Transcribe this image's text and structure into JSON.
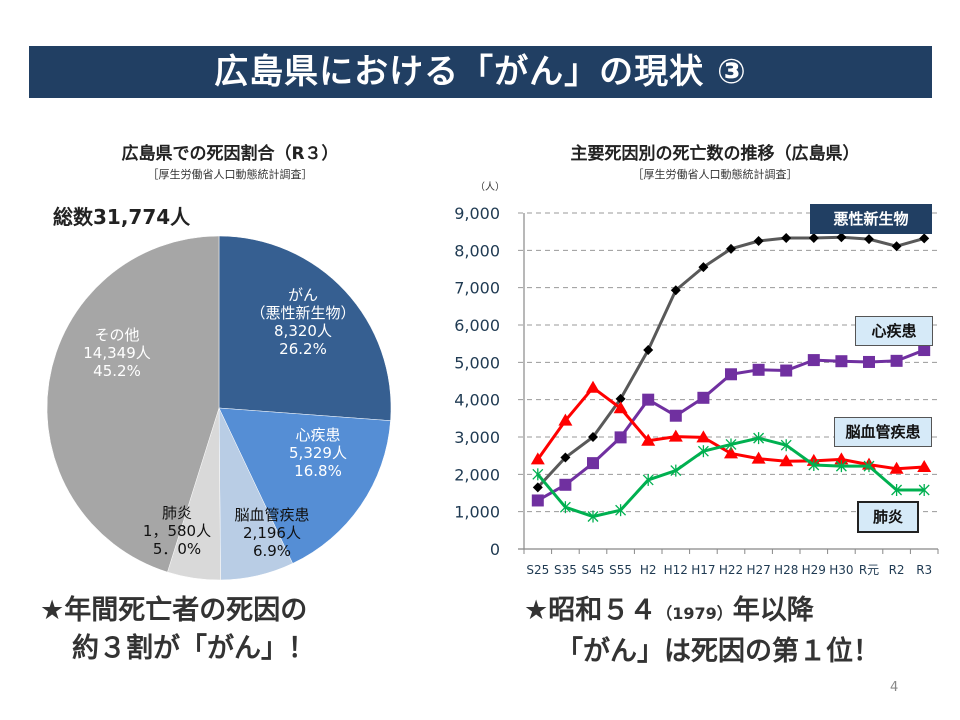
{
  "header": {
    "title": "広島県における「がん」の現状 ③"
  },
  "pie_section": {
    "title": "広島県での死因割合（R３）",
    "source": "［厚生労働省人口動態統計調査］",
    "total": "総数31,774人"
  },
  "line_section": {
    "title": "主要死因別の死亡数の推移（広島県）",
    "source": "［厚生労働省人口動態統計調査］"
  },
  "notes": {
    "left_line1": "★年間死亡者の死因の",
    "left_line2": "約３割が「がん」！",
    "right_line1_a": "★昭和５４",
    "right_line1_b": "（1979）",
    "right_line1_c": "年以降",
    "right_line2": "「がん」は死因の第１位！"
  },
  "page_number": "4",
  "chart_data": [
    {
      "type": "pie",
      "title": "広島県での死因割合（R３）",
      "total_label": "総数31,774人",
      "start": "12 o'clock, clockwise",
      "slices": [
        {
          "name": "がん",
          "sub": "（悪性新生物）",
          "count": "8,320人",
          "percent": "26.2%",
          "value": 26.2,
          "color": "#365f91",
          "text_color": "#ffffff"
        },
        {
          "name": "心疾患",
          "count": "5,329人",
          "percent": "16.8%",
          "value": 16.8,
          "color": "#558ed5",
          "text_color": "#ffffff"
        },
        {
          "name": "脳血管疾患",
          "count": "2,196人",
          "percent": "6.9%",
          "value": 6.9,
          "color": "#b9cde5",
          "text_color": "#111111"
        },
        {
          "name": "肺炎",
          "count": "1，580人",
          "percent": "5．0%",
          "value": 5.0,
          "color": "#d9d9d9",
          "text_color": "#111111"
        },
        {
          "name": "その他",
          "count": "14,349人",
          "percent": "45.2%",
          "value": 45.2,
          "color": "#a6a6a6",
          "text_color": "#ffffff"
        }
      ]
    },
    {
      "type": "line",
      "title": "主要死因別の死亡数の推移（広島県）",
      "ylabel": "（人）",
      "ylim": [
        0,
        9000
      ],
      "yticks": [
        0,
        1000,
        2000,
        3000,
        4000,
        5000,
        6000,
        7000,
        8000,
        9000
      ],
      "ytick_labels": [
        "0",
        "1,000",
        "2,000",
        "3,000",
        "4,000",
        "5,000",
        "6,000",
        "7,000",
        "8,000",
        "9,000"
      ],
      "grid": "horizontal dashed",
      "categories": [
        "S25",
        "S35",
        "S45",
        "S55",
        "H2",
        "H12",
        "H17",
        "H22",
        "H27",
        "H28",
        "H29",
        "H30",
        "R元",
        "R2",
        "R3"
      ],
      "series": [
        {
          "name": "悪性新生物",
          "color": "#595959",
          "marker": "diamond",
          "marker_color": "#000000",
          "values": [
            1650,
            2450,
            3000,
            4020,
            5330,
            6930,
            7550,
            8040,
            8250,
            8330,
            8330,
            8350,
            8300,
            8110,
            8320
          ]
        },
        {
          "name": "心疾患",
          "color": "#7030a0",
          "marker": "square",
          "marker_color": "#7030a0",
          "values": [
            1300,
            1720,
            2300,
            2990,
            4000,
            3570,
            4050,
            4680,
            4800,
            4780,
            5060,
            5030,
            5010,
            5040,
            5329
          ]
        },
        {
          "name": "脳血管疾患",
          "color": "#ff0000",
          "marker": "triangle",
          "marker_color": "#ff0000",
          "values": [
            2400,
            3440,
            4320,
            3770,
            2900,
            3010,
            2990,
            2560,
            2420,
            2350,
            2360,
            2400,
            2260,
            2150,
            2196
          ]
        },
        {
          "name": "肺炎",
          "color": "#00b050",
          "marker": "star",
          "marker_color": "#00b050",
          "values": [
            2000,
            1120,
            870,
            1040,
            1850,
            2100,
            2620,
            2800,
            2970,
            2780,
            2250,
            2220,
            2220,
            1580,
            1580
          ]
        }
      ],
      "callouts": [
        "悪性新生物",
        "心疾患",
        "脳血管疾患",
        "肺炎"
      ]
    }
  ]
}
